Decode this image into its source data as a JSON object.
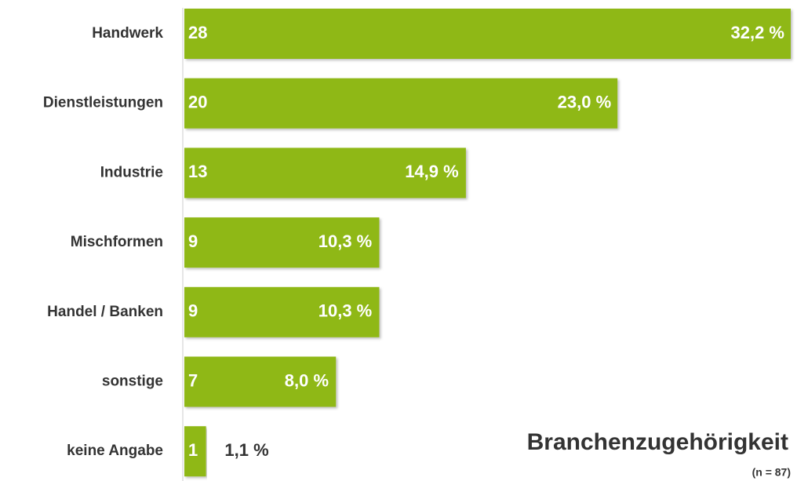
{
  "chart_data": {
    "type": "bar",
    "orientation": "horizontal",
    "title": "Branchenzugehörigkeit",
    "subtitle": "(n = 87)",
    "categories": [
      "Handwerk",
      "Dienstleistungen",
      "Industrie",
      "Mischformen",
      "Handel / Banken",
      "sonstige",
      "keine Angabe"
    ],
    "values": [
      28,
      20,
      13,
      9,
      9,
      7,
      1
    ],
    "shares": [
      32.2,
      23.0,
      14.9,
      10.3,
      10.3,
      8.0,
      1.1
    ],
    "share_labels": [
      "32,2 %",
      "23,0 %",
      "14,9 %",
      "10,3 %",
      "10,3 %",
      "8,0 %",
      "1,1 %"
    ],
    "color": "#8fb812"
  }
}
